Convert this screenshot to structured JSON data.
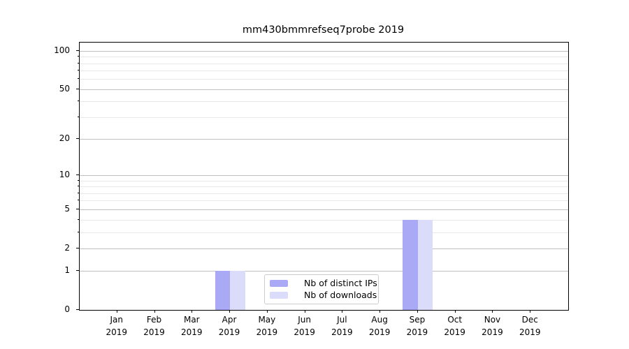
{
  "title": "mm430bmmrefseq7probe 2019",
  "chart_data": {
    "type": "bar",
    "title": "mm430bmmrefseq7probe 2019",
    "categories": [
      "Jan",
      "Feb",
      "Mar",
      "Apr",
      "May",
      "Jun",
      "Jul",
      "Aug",
      "Sep",
      "Oct",
      "Nov",
      "Dec"
    ],
    "category_year": "2019",
    "series": [
      {
        "name": "Nb of distinct IPs",
        "color": "#a9a9f5",
        "values": [
          0,
          0,
          0,
          1,
          0,
          0,
          0,
          0,
          4,
          0,
          0,
          0
        ]
      },
      {
        "name": "Nb of downloads",
        "color": "#dbdbfa",
        "values": [
          0,
          0,
          0,
          1,
          0,
          0,
          0,
          0,
          4,
          0,
          0,
          0
        ]
      }
    ],
    "xlabel": "",
    "ylabel": "",
    "yscale": "log1p",
    "ylim": [
      0,
      116
    ],
    "y_major_ticks": [
      0,
      1,
      2,
      5,
      10,
      20,
      50,
      100
    ],
    "y_minor_ticks": [
      3,
      4,
      6,
      7,
      8,
      9,
      30,
      40,
      60,
      70,
      80,
      90
    ],
    "grid": true,
    "legend_position": "lower center"
  },
  "colors": {
    "background": "#ffffff",
    "axis": "#000000",
    "grid_major": "#c0c0c0",
    "grid_minor": "#e8e8e8",
    "legend_border": "#cccccc",
    "bar_distinct_ips": "#a9a9f5",
    "bar_downloads": "#dbdbfa"
  }
}
